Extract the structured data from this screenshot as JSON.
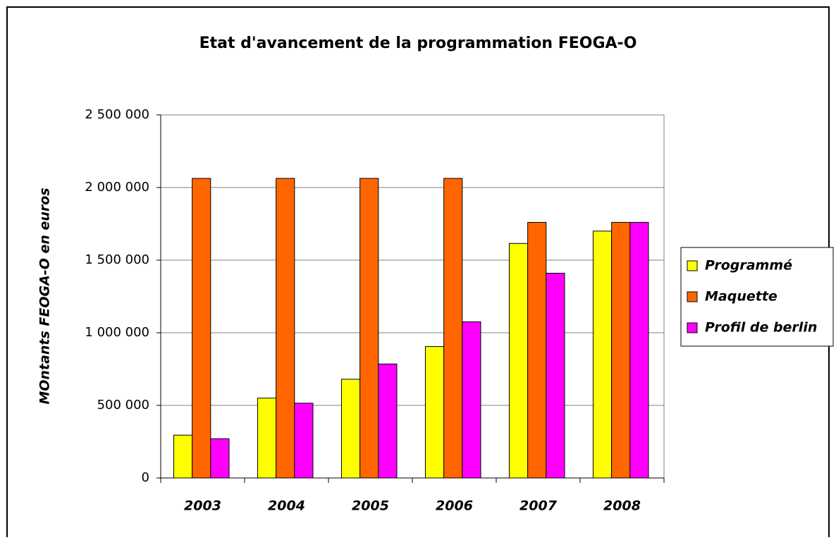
{
  "chart_data": {
    "type": "bar",
    "title": "Etat d'avancement de la programmation FEOGA-O",
    "y_label": "MOntants FEOGA-O en euros",
    "categories": [
      "2003",
      "2004",
      "2005",
      "2006",
      "2007",
      "2008"
    ],
    "series": [
      {
        "name": "Programmé",
        "color": "#ffff00",
        "values": [
          295000,
          550000,
          680000,
          905000,
          1615000,
          1700000
        ]
      },
      {
        "name": "Maquette",
        "color": "#ff6600",
        "values": [
          2063000,
          2063000,
          2063000,
          2063000,
          1760000,
          1760000
        ]
      },
      {
        "name": "Profil de berlin",
        "color": "#ff00ff",
        "values": [
          270000,
          515000,
          785000,
          1075000,
          1410000,
          1760000
        ]
      }
    ],
    "ylim": [
      0,
      2500000
    ],
    "yticks": [
      0,
      {
        "value": 500000,
        "label": "500 000"
      },
      {
        "value": 1000000,
        "label": "1 000 000"
      },
      {
        "value": 1500000,
        "label": "1 500 000"
      },
      {
        "value": 2000000,
        "label": "2 000 000"
      },
      {
        "value": 2500000,
        "label": "2 500 000"
      }
    ],
    "grid": true,
    "legend": "right"
  }
}
